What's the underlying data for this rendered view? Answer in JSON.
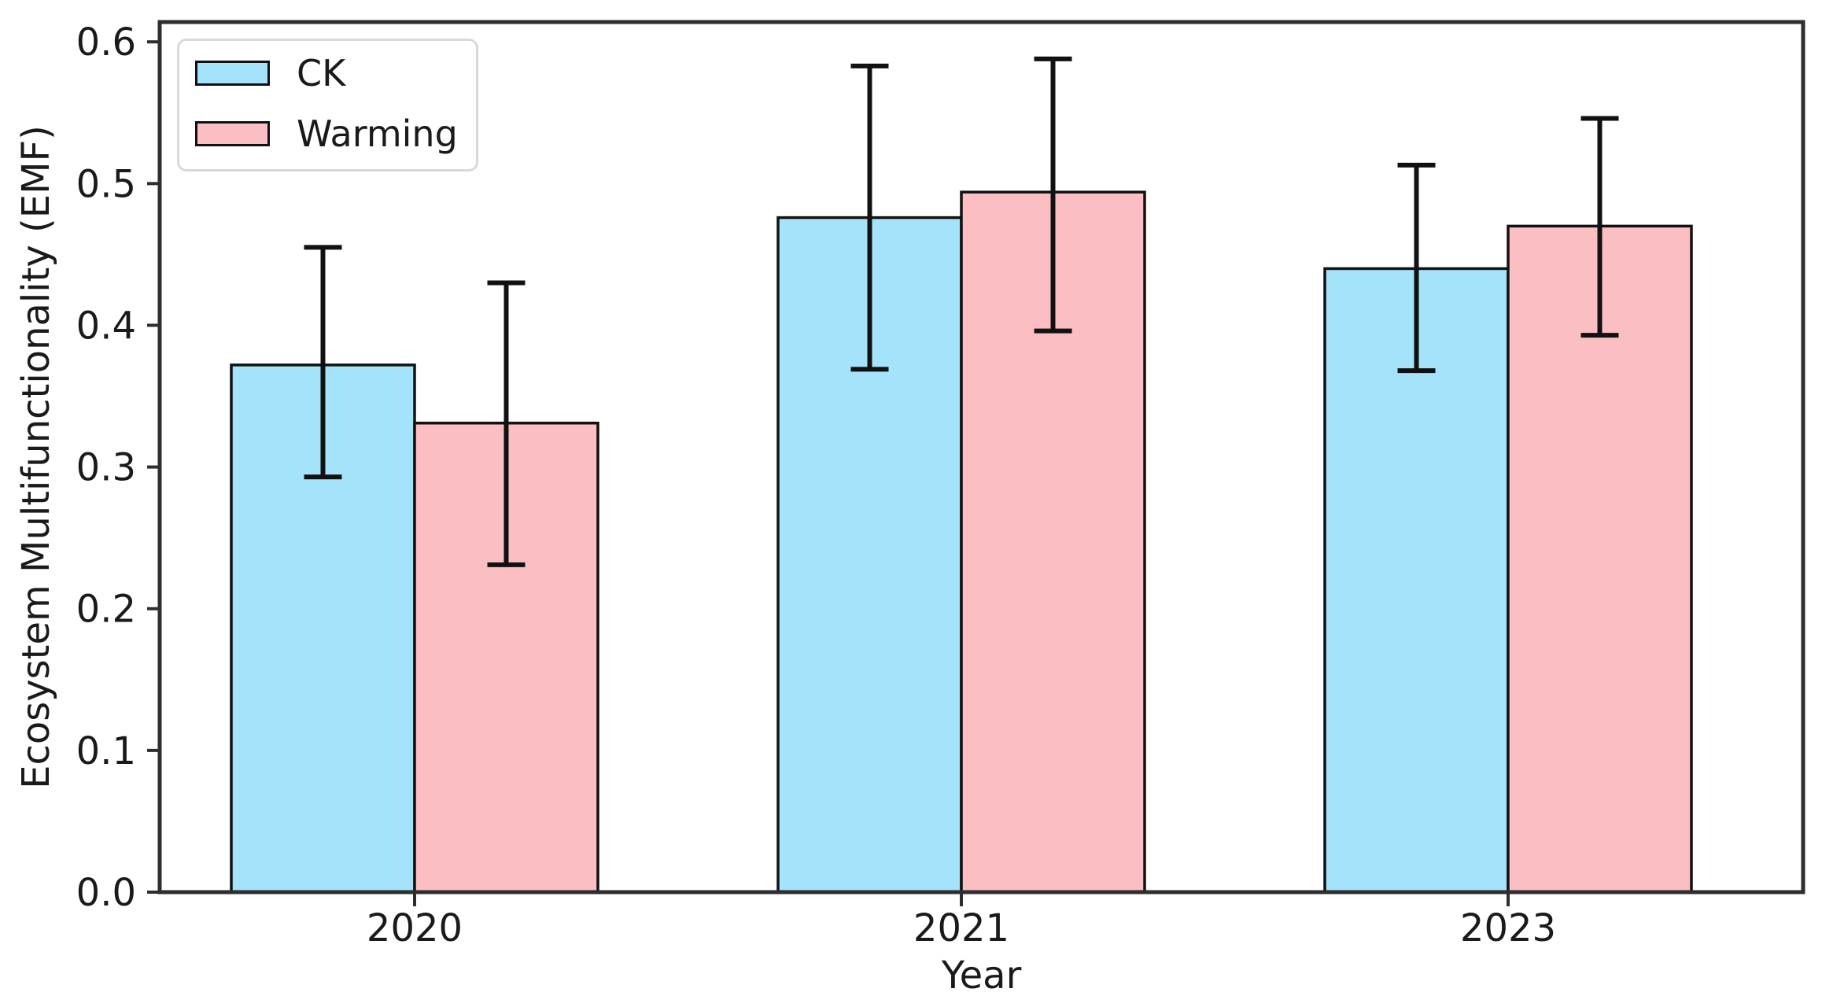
{
  "figure": {
    "background": "#ffffff"
  },
  "chart_data": {
    "type": "bar",
    "title": "",
    "xlabel": "Year",
    "ylabel": "Ecosystem Multifunctionality (EMF)",
    "categories": [
      "2020",
      "2021",
      "2023"
    ],
    "series": [
      {
        "name": "CK",
        "color": "#A5E3FA",
        "edge_color": "#111111",
        "values": [
          0.372,
          0.476,
          0.44
        ],
        "error_low": [
          0.079,
          0.107,
          0.072
        ],
        "error_high": [
          0.083,
          0.107,
          0.073
        ]
      },
      {
        "name": "Warming",
        "color": "#FBBFC3",
        "edge_color": "#111111",
        "values": [
          0.331,
          0.494,
          0.47
        ],
        "error_low": [
          0.1,
          0.098,
          0.077
        ],
        "error_high": [
          0.099,
          0.094,
          0.076
        ]
      }
    ],
    "ylim": [
      0,
      0.614
    ],
    "yticks": [
      "0.0",
      "0.1",
      "0.2",
      "0.3",
      "0.4",
      "0.5",
      "0.6"
    ],
    "grid": false,
    "legend_position": "upper-left",
    "error_bar_color": "#111111",
    "axis_color": "#2e2e2e",
    "tick_label_color": "#1a1a1a"
  }
}
